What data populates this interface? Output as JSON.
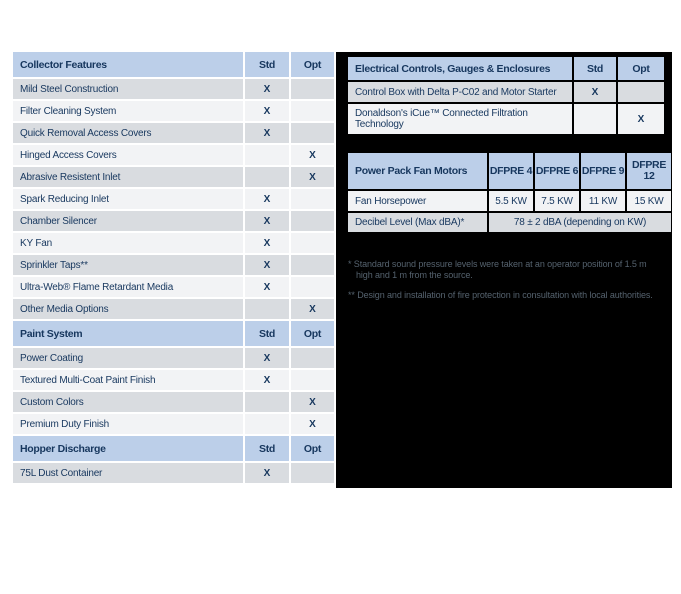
{
  "colors": {
    "header_blue": "#bccfe9",
    "row_grey": "#d9dce0",
    "row_light": "#f2f3f5",
    "navy_text": "#17375e",
    "panel_black": "#000000",
    "footnote_grey": "#55626e"
  },
  "left_tables": [
    {
      "title": "Collector Features",
      "std": "Std",
      "opt": "Opt",
      "rows": [
        {
          "label": "Mild Steel Construction",
          "std": "X",
          "opt": ""
        },
        {
          "label": "Filter Cleaning System",
          "std": "X",
          "opt": ""
        },
        {
          "label": "Quick Removal Access Covers",
          "std": "X",
          "opt": ""
        },
        {
          "label": "Hinged Access Covers",
          "std": "",
          "opt": "X"
        },
        {
          "label": "Abrasive Resistent Inlet",
          "std": "",
          "opt": "X"
        },
        {
          "label": "Spark Reducing Inlet",
          "std": "X",
          "opt": ""
        },
        {
          "label": "Chamber Silencer",
          "std": "X",
          "opt": ""
        },
        {
          "label": "KY Fan",
          "std": "X",
          "opt": ""
        },
        {
          "label": "Sprinkler Taps**",
          "std": "X",
          "opt": ""
        },
        {
          "label": "Ultra-Web® Flame Retardant Media",
          "std": "X",
          "opt": ""
        },
        {
          "label": "Other Media Options",
          "std": "",
          "opt": "X"
        }
      ]
    },
    {
      "title": "Paint System",
      "std": "Std",
      "opt": "Opt",
      "rows": [
        {
          "label": "Power Coating",
          "std": "X",
          "opt": ""
        },
        {
          "label": "Textured Multi-Coat Paint Finish",
          "std": "X",
          "opt": ""
        },
        {
          "label": "Custom Colors",
          "std": "",
          "opt": "X"
        },
        {
          "label": "Premium Duty Finish",
          "std": "",
          "opt": "X"
        }
      ]
    },
    {
      "title": "Hopper Discharge",
      "std": "Std",
      "opt": "Opt",
      "rows": [
        {
          "label": "75L Dust Container",
          "std": "X",
          "opt": ""
        }
      ]
    }
  ],
  "electrical_table": {
    "title": "Electrical Controls, Gauges & Enclosures",
    "std": "Std",
    "opt": "Opt",
    "rows": [
      {
        "label": "Control Box with Delta P-C02 and Motor Starter",
        "std": "X",
        "opt": ""
      },
      {
        "label": "Donaldson's iCue™ Connected Filtration Technology",
        "std": "",
        "opt": "X"
      }
    ]
  },
  "fan_table": {
    "title": "Power Pack Fan Motors",
    "columns": [
      "DFPRE 4",
      "DFPRE 6",
      "DFPRE 9",
      "DFPRE 12"
    ],
    "horsepower_row": {
      "label": "Fan Horsepower",
      "values": [
        "5.5 KW",
        "7.5 KW",
        "11 KW",
        "15 KW"
      ]
    },
    "decibel_row": {
      "label": "Decibel Level (Max dBA)*",
      "value": "78 ± 2 dBA (depending on KW)"
    }
  },
  "footnotes": [
    "* Standard sound pressure levels were taken at an operator position of 1.5 m high and 1 m from the source.",
    "** Design and installation of fire protection in consultation with local authorities."
  ]
}
